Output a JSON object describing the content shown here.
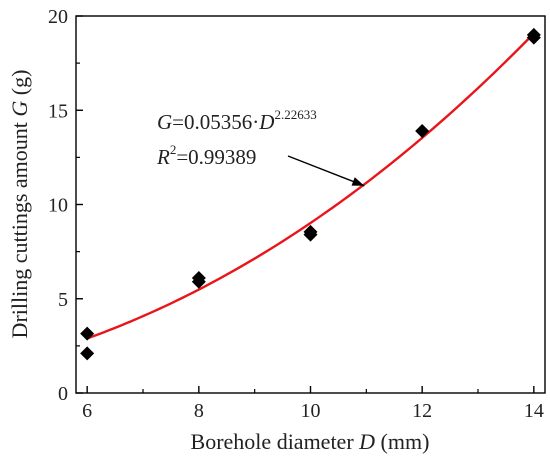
{
  "chart_data": {
    "type": "scatter",
    "xlabel": {
      "prefix": "Borehole diameter ",
      "var": "D",
      "suffix": " (mm)"
    },
    "ylabel": {
      "prefix": "Drilling cuttings amount ",
      "var": "G",
      "suffix": " (g)"
    },
    "xlim": [
      5.8,
      14.2
    ],
    "ylim": [
      0,
      20
    ],
    "x_ticks": [
      "6",
      "8",
      "10",
      "12",
      "14"
    ],
    "y_ticks": [
      "0",
      "5",
      "10",
      "15",
      "20"
    ],
    "points": [
      {
        "x": 6,
        "y": 3.15
      },
      {
        "x": 6,
        "y": 2.1
      },
      {
        "x": 8,
        "y": 6.1
      },
      {
        "x": 8,
        "y": 5.9
      },
      {
        "x": 10,
        "y": 8.55
      },
      {
        "x": 10,
        "y": 8.4
      },
      {
        "x": 12,
        "y": 13.9
      },
      {
        "x": 14,
        "y": 19.0
      },
      {
        "x": 14,
        "y": 18.85
      }
    ],
    "fit": {
      "a": 0.05356,
      "b": 2.22633,
      "r2": 0.99389,
      "color": "#e8161b"
    },
    "annotation": {
      "line1": {
        "var_g": "G",
        "eq_a": "=0.05356·",
        "var_d": "D",
        "exp": "2.22633"
      },
      "line2": {
        "var_r": "R",
        "sq": "2",
        "eq_r": "=0.99389"
      }
    },
    "marker_color": "#000000",
    "grid": false,
    "legend": "none"
  }
}
